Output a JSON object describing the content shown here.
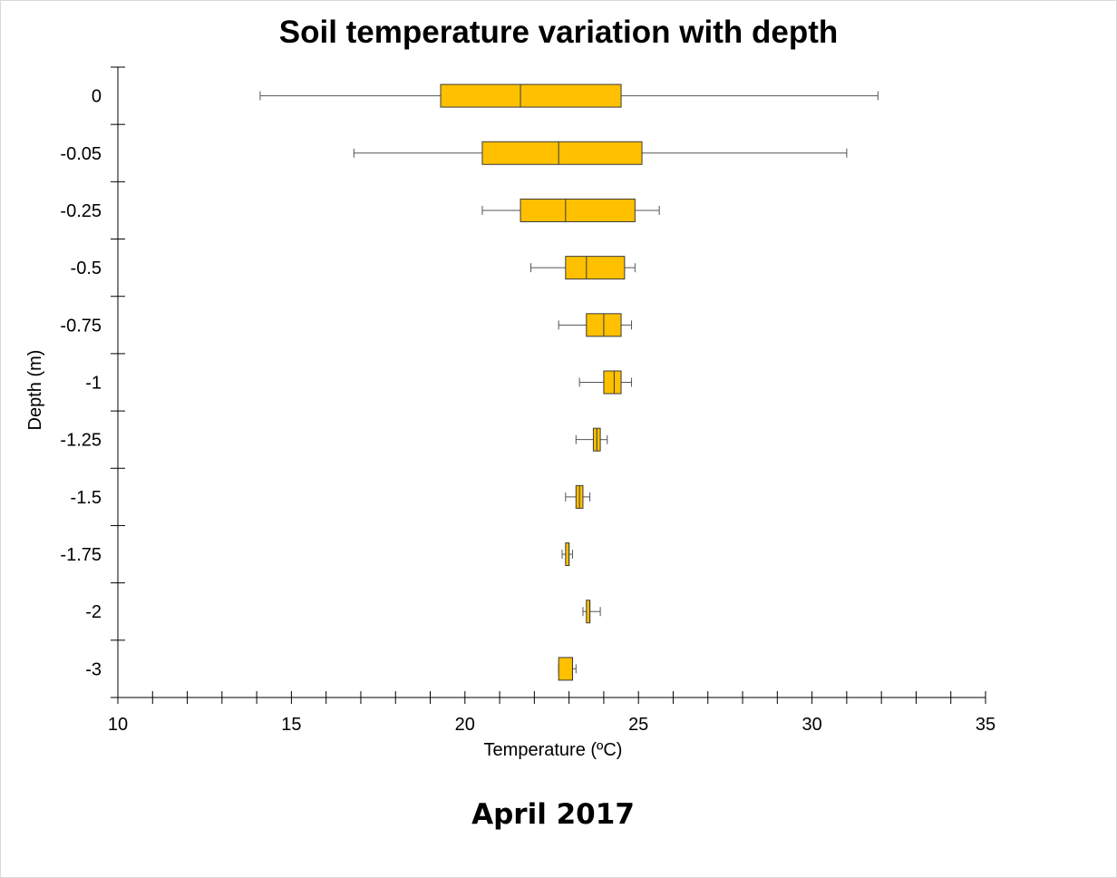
{
  "title": "Soil temperature variation with depth",
  "caption": "April 2017",
  "chart_data": {
    "type": "box",
    "orientation": "horizontal",
    "title": "Soil temperature variation with depth",
    "xlabel": "Temperature (ºC)",
    "ylabel": "Depth (m)",
    "xlim": [
      10,
      35
    ],
    "x_major_ticks": [
      10,
      15,
      20,
      25,
      30,
      35
    ],
    "x_minor_step": 1,
    "grid": false,
    "box_color": "#FFC000",
    "box_edge_color": "#3a3a3a",
    "categories": [
      "0",
      "-0.05",
      "-0.25",
      "-0.5",
      "-0.75",
      "-1",
      "-1.25",
      "-1.5",
      "-1.75",
      "-2",
      "-3"
    ],
    "boxes": [
      {
        "depth": "0",
        "min": 14.1,
        "q1": 19.3,
        "median": 21.6,
        "q3": 24.5,
        "max": 31.9
      },
      {
        "depth": "-0.05",
        "min": 16.8,
        "q1": 20.5,
        "median": 22.7,
        "q3": 25.1,
        "max": 31.0
      },
      {
        "depth": "-0.25",
        "min": 20.5,
        "q1": 21.6,
        "median": 22.9,
        "q3": 24.9,
        "max": 25.6
      },
      {
        "depth": "-0.5",
        "min": 21.9,
        "q1": 22.9,
        "median": 23.5,
        "q3": 24.6,
        "max": 24.9
      },
      {
        "depth": "-0.75",
        "min": 22.7,
        "q1": 23.5,
        "median": 24.0,
        "q3": 24.5,
        "max": 24.8
      },
      {
        "depth": "-1",
        "min": 23.3,
        "q1": 24.0,
        "median": 24.3,
        "q3": 24.5,
        "max": 24.8
      },
      {
        "depth": "-1.25",
        "min": 23.2,
        "q1": 23.7,
        "median": 23.8,
        "q3": 23.9,
        "max": 24.1
      },
      {
        "depth": "-1.5",
        "min": 22.9,
        "q1": 23.2,
        "median": 23.3,
        "q3": 23.4,
        "max": 23.6
      },
      {
        "depth": "-1.75",
        "min": 22.8,
        "q1": 22.9,
        "median": 23.0,
        "q3": 23.0,
        "max": 23.1
      },
      {
        "depth": "-2",
        "min": 23.4,
        "q1": 23.5,
        "median": 23.6,
        "q3": 23.6,
        "max": 23.9
      },
      {
        "depth": "-3",
        "min": 22.7,
        "q1": 22.7,
        "median": 23.1,
        "q3": 23.1,
        "max": 23.2
      }
    ]
  }
}
